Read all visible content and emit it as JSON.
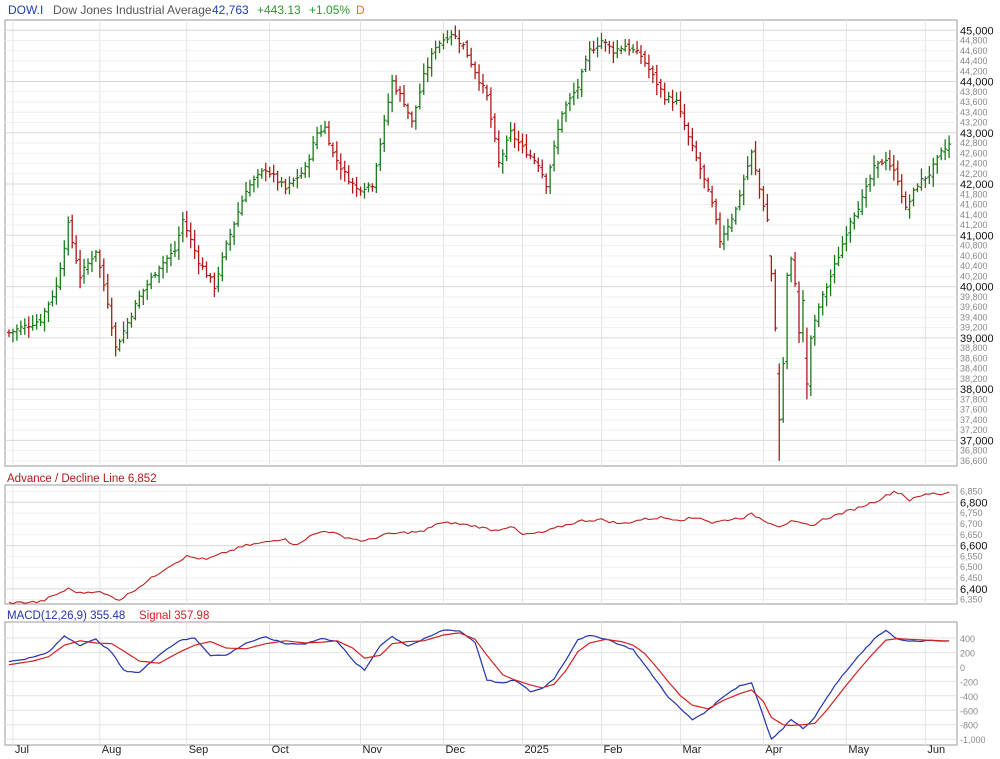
{
  "header": {
    "symbol": "DOW.I",
    "name": "Dow Jones Industrial Average",
    "last": "42,763",
    "change": "+443.13",
    "change_pct": "+1.05%",
    "period": "D"
  },
  "colors": {
    "up": "#1a7a1a",
    "down": "#b01818",
    "header_blue": "#1a3fb0",
    "header_green": "#2a9a2a",
    "header_orange": "#e07a10",
    "ad_line": "#c02020",
    "macd_line": "#2233aa",
    "signal_line": "#d42020",
    "grid": "#e4e4e4",
    "frame": "#999999"
  },
  "panels": {
    "price_title": "",
    "ad_title": "Advance / Decline Line 6,852",
    "macd_label": "MACD(12,26,9) 355.48",
    "signal_label": "Signal 357.98"
  },
  "chart_data": [
    {
      "type": "ohlc",
      "panel": "price",
      "y_scale": [
        36500,
        45200
      ],
      "y_ticks_major": [
        "45,000",
        "44,000",
        "43,000",
        "42,000",
        "41,000",
        "40,000",
        "39,000",
        "38,000",
        "37,000"
      ],
      "y_ticks_minor": [
        "44,800",
        "44,600",
        "44,400",
        "44,200",
        "43,800",
        "43,600",
        "43,400",
        "43,200",
        "42,800",
        "42,600",
        "42,400",
        "42,200",
        "41,800",
        "41,600",
        "41,400",
        "41,200",
        "40,800",
        "40,600",
        "40,400",
        "40,200",
        "39,800",
        "39,600",
        "39,400",
        "39,200",
        "38,800",
        "38,600",
        "38,400",
        "38,200",
        "37,800",
        "37,600",
        "37,400",
        "37,200",
        "36,800",
        "36,600"
      ],
      "x_labels": [
        "Jul",
        "Aug",
        "Sep",
        "Oct",
        "Nov",
        "Dec",
        "2025",
        "Feb",
        "Mar",
        "Apr",
        "May",
        "Jun"
      ],
      "anchors": [
        [
          0,
          39100
        ],
        [
          8,
          39350
        ],
        [
          12,
          40000
        ],
        [
          15,
          41200
        ],
        [
          18,
          40200
        ],
        [
          22,
          40700
        ],
        [
          25,
          39700
        ],
        [
          27,
          38800
        ],
        [
          30,
          39300
        ],
        [
          33,
          39800
        ],
        [
          38,
          40400
        ],
        [
          42,
          40700
        ],
        [
          44,
          41300
        ],
        [
          48,
          40500
        ],
        [
          52,
          40000
        ],
        [
          55,
          40800
        ],
        [
          60,
          41900
        ],
        [
          65,
          42300
        ],
        [
          70,
          41900
        ],
        [
          75,
          42300
        ],
        [
          78,
          43000
        ],
        [
          80,
          43100
        ],
        [
          82,
          42600
        ],
        [
          85,
          42200
        ],
        [
          88,
          41900
        ],
        [
          92,
          42000
        ],
        [
          94,
          42800
        ],
        [
          97,
          44000
        ],
        [
          100,
          43600
        ],
        [
          102,
          43200
        ],
        [
          105,
          44100
        ],
        [
          108,
          44700
        ],
        [
          112,
          44950
        ],
        [
          115,
          44700
        ],
        [
          118,
          44200
        ],
        [
          121,
          43700
        ],
        [
          124,
          42400
        ],
        [
          127,
          43000
        ],
        [
          130,
          42700
        ],
        [
          134,
          42400
        ],
        [
          136,
          42000
        ],
        [
          140,
          43400
        ],
        [
          144,
          43900
        ],
        [
          147,
          44600
        ],
        [
          150,
          44800
        ],
        [
          153,
          44600
        ],
        [
          156,
          44700
        ],
        [
          160,
          44500
        ],
        [
          163,
          44100
        ],
        [
          166,
          43700
        ],
        [
          169,
          43600
        ],
        [
          172,
          42900
        ],
        [
          175,
          42300
        ],
        [
          178,
          41600
        ],
        [
          180,
          40900
        ],
        [
          182,
          41200
        ],
        [
          184,
          41500
        ],
        [
          186,
          42100
        ],
        [
          188,
          42600
        ],
        [
          190,
          41900
        ],
        [
          192,
          41300
        ],
        [
          193,
          40600
        ],
        [
          194,
          39200
        ],
        [
          195,
          37600
        ],
        [
          196,
          38500
        ],
        [
          197,
          40200
        ],
        [
          198,
          40500
        ],
        [
          199,
          40100
        ],
        [
          201,
          39700
        ],
        [
          202,
          38600
        ],
        [
          203,
          39000
        ],
        [
          205,
          39600
        ],
        [
          207,
          40000
        ],
        [
          210,
          40600
        ],
        [
          213,
          41300
        ],
        [
          216,
          41700
        ],
        [
          219,
          42300
        ],
        [
          222,
          42500
        ],
        [
          225,
          42100
        ],
        [
          227,
          41500
        ],
        [
          230,
          42000
        ],
        [
          233,
          42200
        ],
        [
          236,
          42600
        ],
        [
          238,
          42763
        ]
      ],
      "sharp_bars": [
        [
          193,
          40600,
          40600,
          40100,
          40250
        ],
        [
          195,
          38300,
          38500,
          36600,
          37400
        ],
        [
          200,
          39900,
          40100,
          38900,
          39100
        ],
        [
          202,
          38600,
          39200,
          37800,
          38100
        ]
      ]
    },
    {
      "type": "line",
      "panel": "advance_decline",
      "name": "Advance / Decline Line",
      "y_scale": [
        6330,
        6880
      ],
      "y_ticks_major": [
        "6,800",
        "6,600",
        "6,400"
      ],
      "y_ticks_minor": [
        "6,850",
        "6,750",
        "6,700",
        "6,650",
        "6,550",
        "6,500",
        "6,450",
        "6,350"
      ],
      "anchors": [
        [
          0,
          6335
        ],
        [
          8,
          6340
        ],
        [
          15,
          6400
        ],
        [
          18,
          6380
        ],
        [
          22,
          6390
        ],
        [
          28,
          6350
        ],
        [
          33,
          6410
        ],
        [
          40,
          6500
        ],
        [
          45,
          6550
        ],
        [
          50,
          6535
        ],
        [
          55,
          6570
        ],
        [
          60,
          6600
        ],
        [
          65,
          6615
        ],
        [
          70,
          6635
        ],
        [
          72,
          6600
        ],
        [
          77,
          6650
        ],
        [
          80,
          6670
        ],
        [
          85,
          6640
        ],
        [
          90,
          6620
        ],
        [
          95,
          6650
        ],
        [
          100,
          6660
        ],
        [
          105,
          6665
        ],
        [
          108,
          6700
        ],
        [
          112,
          6705
        ],
        [
          118,
          6690
        ],
        [
          123,
          6670
        ],
        [
          127,
          6690
        ],
        [
          130,
          6650
        ],
        [
          135,
          6660
        ],
        [
          140,
          6690
        ],
        [
          145,
          6715
        ],
        [
          150,
          6720
        ],
        [
          155,
          6700
        ],
        [
          160,
          6720
        ],
        [
          165,
          6730
        ],
        [
          170,
          6720
        ],
        [
          175,
          6730
        ],
        [
          178,
          6705
        ],
        [
          182,
          6720
        ],
        [
          186,
          6730
        ],
        [
          188,
          6745
        ],
        [
          192,
          6710
        ],
        [
          195,
          6690
        ],
        [
          198,
          6710
        ],
        [
          201,
          6700
        ],
        [
          203,
          6690
        ],
        [
          206,
          6720
        ],
        [
          210,
          6745
        ],
        [
          215,
          6775
        ],
        [
          220,
          6810
        ],
        [
          222,
          6830
        ],
        [
          224,
          6850
        ],
        [
          226,
          6840
        ],
        [
          228,
          6810
        ],
        [
          231,
          6830
        ],
        [
          234,
          6845
        ],
        [
          236,
          6835
        ],
        [
          238,
          6852
        ]
      ]
    },
    {
      "type": "line",
      "panel": "macd",
      "y_scale": [
        -1080,
        620
      ],
      "y_ticks": [
        "400",
        "200",
        "0",
        "-200",
        "-400",
        "-600",
        "-800",
        "-1,000"
      ],
      "series": [
        {
          "name": "MACD(12,26,9)",
          "anchors": [
            [
              0,
              70
            ],
            [
              6,
              130
            ],
            [
              10,
              200
            ],
            [
              14,
              430
            ],
            [
              18,
              300
            ],
            [
              22,
              380
            ],
            [
              26,
              200
            ],
            [
              29,
              -50
            ],
            [
              33,
              -80
            ],
            [
              38,
              170
            ],
            [
              43,
              360
            ],
            [
              47,
              400
            ],
            [
              51,
              160
            ],
            [
              55,
              160
            ],
            [
              60,
              330
            ],
            [
              65,
              410
            ],
            [
              70,
              320
            ],
            [
              75,
              320
            ],
            [
              79,
              390
            ],
            [
              83,
              360
            ],
            [
              87,
              90
            ],
            [
              90,
              -50
            ],
            [
              94,
              300
            ],
            [
              97,
              420
            ],
            [
              101,
              290
            ],
            [
              105,
              380
            ],
            [
              110,
              510
            ],
            [
              114,
              500
            ],
            [
              118,
              340
            ],
            [
              121,
              -180
            ],
            [
              125,
              -230
            ],
            [
              128,
              -180
            ],
            [
              132,
              -340
            ],
            [
              135,
              -300
            ],
            [
              138,
              -160
            ],
            [
              141,
              100
            ],
            [
              144,
              380
            ],
            [
              147,
              430
            ],
            [
              151,
              390
            ],
            [
              155,
              300
            ],
            [
              158,
              240
            ],
            [
              161,
              20
            ],
            [
              164,
              -200
            ],
            [
              167,
              -420
            ],
            [
              170,
              -580
            ],
            [
              173,
              -730
            ],
            [
              177,
              -600
            ],
            [
              181,
              -400
            ],
            [
              185,
              -260
            ],
            [
              188,
              -220
            ],
            [
              191,
              -680
            ],
            [
              193,
              -1000
            ],
            [
              196,
              -850
            ],
            [
              198,
              -720
            ],
            [
              201,
              -850
            ],
            [
              204,
              -700
            ],
            [
              207,
              -420
            ],
            [
              211,
              -120
            ],
            [
              215,
              140
            ],
            [
              219,
              380
            ],
            [
              222,
              510
            ],
            [
              225,
              380
            ],
            [
              228,
              350
            ],
            [
              232,
              360
            ],
            [
              238,
              355
            ]
          ]
        },
        {
          "name": "Signal",
          "anchors": [
            [
              0,
              30
            ],
            [
              6,
              80
            ],
            [
              10,
              140
            ],
            [
              14,
              300
            ],
            [
              18,
              360
            ],
            [
              22,
              330
            ],
            [
              26,
              320
            ],
            [
              29,
              220
            ],
            [
              33,
              80
            ],
            [
              38,
              50
            ],
            [
              43,
              200
            ],
            [
              47,
              300
            ],
            [
              51,
              350
            ],
            [
              55,
              260
            ],
            [
              60,
              250
            ],
            [
              65,
              320
            ],
            [
              70,
              360
            ],
            [
              75,
              330
            ],
            [
              79,
              340
            ],
            [
              83,
              360
            ],
            [
              87,
              260
            ],
            [
              90,
              120
            ],
            [
              94,
              160
            ],
            [
              97,
              320
            ],
            [
              101,
              350
            ],
            [
              105,
              360
            ],
            [
              110,
              440
            ],
            [
              114,
              470
            ],
            [
              118,
              380
            ],
            [
              121,
              160
            ],
            [
              125,
              -110
            ],
            [
              128,
              -180
            ],
            [
              132,
              -250
            ],
            [
              135,
              -290
            ],
            [
              138,
              -240
            ],
            [
              141,
              -50
            ],
            [
              144,
              210
            ],
            [
              147,
              330
            ],
            [
              151,
              380
            ],
            [
              155,
              350
            ],
            [
              158,
              300
            ],
            [
              161,
              180
            ],
            [
              164,
              -10
            ],
            [
              167,
              -210
            ],
            [
              170,
              -400
            ],
            [
              173,
              -530
            ],
            [
              177,
              -580
            ],
            [
              181,
              -460
            ],
            [
              185,
              -370
            ],
            [
              188,
              -320
            ],
            [
              191,
              -480
            ],
            [
              193,
              -700
            ],
            [
              196,
              -800
            ],
            [
              198,
              -810
            ],
            [
              201,
              -800
            ],
            [
              204,
              -780
            ],
            [
              207,
              -600
            ],
            [
              211,
              -320
            ],
            [
              215,
              -50
            ],
            [
              219,
              200
            ],
            [
              222,
              370
            ],
            [
              225,
              390
            ],
            [
              228,
              380
            ],
            [
              232,
              370
            ],
            [
              238,
              358
            ]
          ]
        }
      ]
    }
  ]
}
